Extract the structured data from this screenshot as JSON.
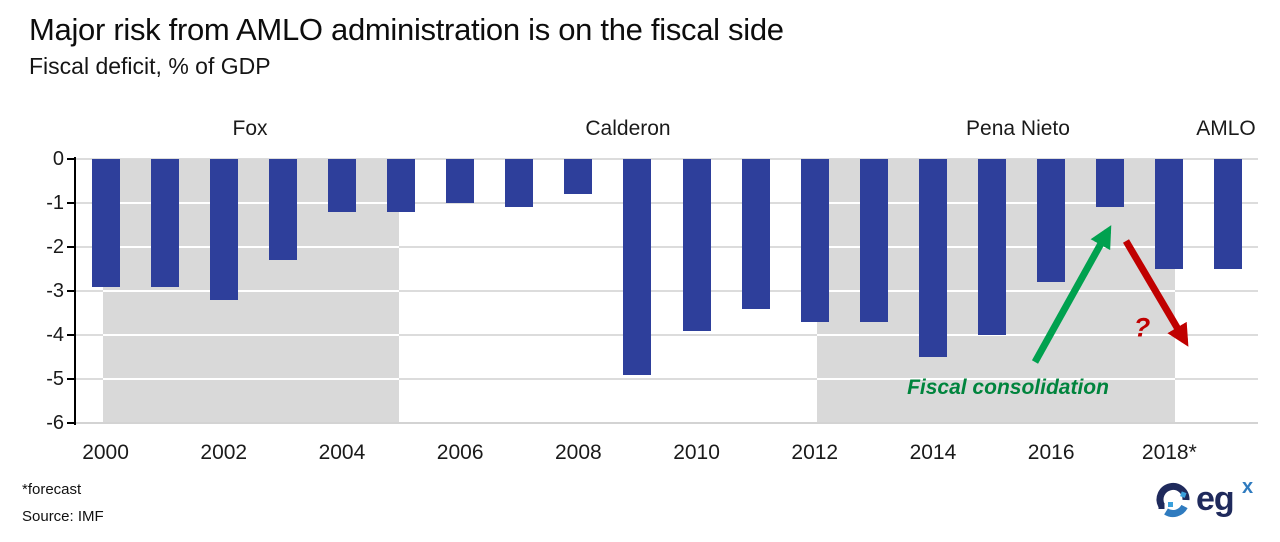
{
  "title": "Major risk from AMLO administration is on the fiscal side",
  "subtitle": "Fiscal deficit, % of GDP",
  "footnote": "*forecast",
  "source": "Source: IMF",
  "logo": {
    "text": "eg",
    "sup": "x"
  },
  "annotations": {
    "fiscal_consolidation": "Fiscal consolidation",
    "question_mark": "?"
  },
  "colors": {
    "bar_blue": "#2e3f9b",
    "band_gray": "#d9d9d9",
    "gridline_gray": "#dcdcdc",
    "green_arrow": "#00a14f",
    "green_text": "#00843d",
    "red_arrow": "#c00000",
    "logo_navy": "#1f2a5c",
    "logo_blue": "#2f7bbf"
  },
  "chart_data": {
    "type": "bar",
    "title": "Fiscal deficit, % of GDP",
    "x": [
      2000,
      2001,
      2002,
      2003,
      2004,
      2005,
      2006,
      2007,
      2008,
      2009,
      2010,
      2011,
      2012,
      2013,
      2014,
      2015,
      2016,
      2017,
      2018,
      2019
    ],
    "values": [
      -2.9,
      -2.9,
      -3.2,
      -2.3,
      -1.2,
      -1.2,
      -1.0,
      -1.1,
      -0.8,
      -4.9,
      -3.9,
      -3.4,
      -3.7,
      -3.7,
      -4.5,
      -4.0,
      -2.8,
      -1.1,
      -2.5,
      -2.5
    ],
    "ylim": [
      -6,
      0
    ],
    "yticks": [
      0,
      -1,
      -2,
      -3,
      -4,
      -5,
      -6
    ],
    "xticks": [
      {
        "year": 2000,
        "label": "2000"
      },
      {
        "year": 2002,
        "label": "2002"
      },
      {
        "year": 2004,
        "label": "2004"
      },
      {
        "year": 2006,
        "label": "2006"
      },
      {
        "year": 2008,
        "label": "2008"
      },
      {
        "year": 2010,
        "label": "2010"
      },
      {
        "year": 2012,
        "label": "2012"
      },
      {
        "year": 2014,
        "label": "2014"
      },
      {
        "year": 2016,
        "label": "2016"
      },
      {
        "year": 2018,
        "label": "2018*"
      }
    ],
    "grid": true,
    "legend": false,
    "presidents": [
      {
        "name": "Fox",
        "start": 2000.45,
        "end": 2005.47,
        "shaded": true
      },
      {
        "name": "Calderon",
        "start": 2005.47,
        "end": 2012.53,
        "shaded": false
      },
      {
        "name": "Pena Nieto",
        "start": 2012.53,
        "end": 2018.6,
        "shaded": true
      },
      {
        "name": "AMLO",
        "start": 2018.6,
        "end": 2020.0,
        "shaded": false
      }
    ]
  }
}
